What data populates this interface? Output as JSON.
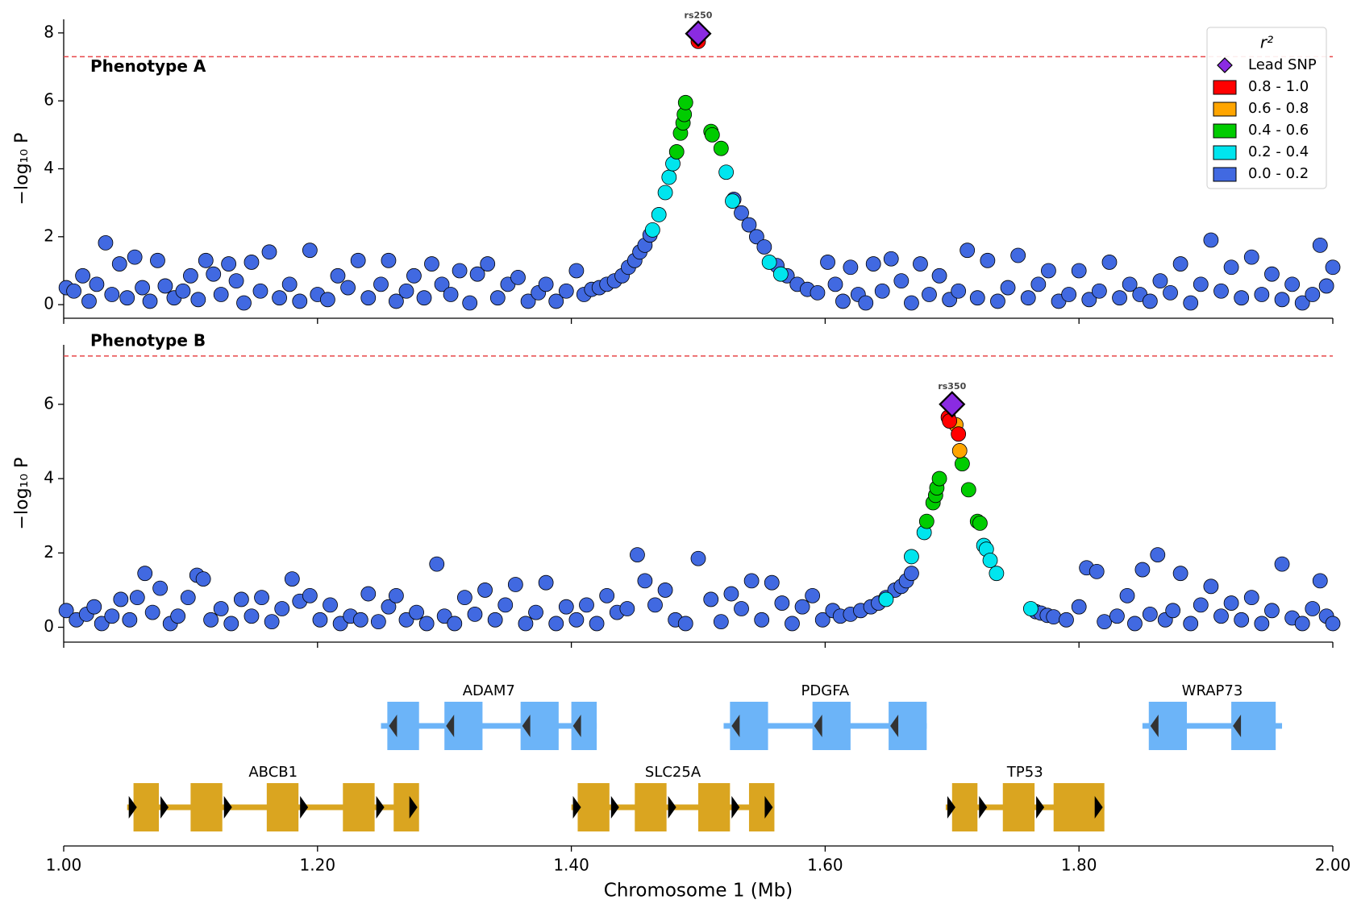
{
  "chart_data": [
    {
      "type": "scatter",
      "title": "Phenotype A",
      "ylabel": "−log₁₀ P",
      "xlim": [
        1.0,
        2.0
      ],
      "xticks": [
        1.0,
        1.2,
        1.4,
        1.6,
        1.8,
        2.0
      ],
      "ylim": [
        -0.4,
        8.4
      ],
      "yticks": [
        0,
        2,
        4,
        6,
        8
      ],
      "threshold": 7.3,
      "threshold_color": "#e8474a",
      "legend": {
        "title": "r²",
        "lead_label": "Lead SNP",
        "position": "upper right"
      },
      "lead": {
        "label": "rs250",
        "x": 1.5,
        "y": 7.98,
        "color": "#8a2be2"
      },
      "series": [
        {
          "name": "0.8 - 1.0",
          "color": "#ff0000",
          "x": [
            1.5
          ],
          "values": [
            7.75
          ]
        },
        {
          "name": "0.6 - 0.8",
          "color": "#ffa500",
          "x": [],
          "values": []
        },
        {
          "name": "0.4 - 0.6",
          "color": "#00cc00",
          "x": [
            1.483,
            1.486,
            1.488,
            1.489,
            1.49,
            1.51,
            1.511,
            1.518
          ],
          "values": [
            4.5,
            5.05,
            5.35,
            5.6,
            5.95,
            5.1,
            5.0,
            4.6
          ]
        },
        {
          "name": "0.2 - 0.4",
          "color": "#00e5ee",
          "x": [
            1.464,
            1.469,
            1.474,
            1.477,
            1.48,
            1.522,
            1.527,
            1.556,
            1.565
          ],
          "values": [
            2.2,
            2.65,
            3.3,
            3.75,
            4.15,
            3.9,
            3.05,
            1.25,
            0.9
          ]
        },
        {
          "name": "0.0 - 0.2",
          "color": "#4169e1",
          "x": [
            1.002,
            1.008,
            1.015,
            1.02,
            1.026,
            1.033,
            1.038,
            1.044,
            1.05,
            1.056,
            1.062,
            1.068,
            1.074,
            1.08,
            1.087,
            1.094,
            1.1,
            1.106,
            1.112,
            1.118,
            1.124,
            1.13,
            1.136,
            1.142,
            1.148,
            1.155,
            1.162,
            1.17,
            1.178,
            1.186,
            1.194,
            1.2,
            1.208,
            1.216,
            1.224,
            1.232,
            1.24,
            1.25,
            1.256,
            1.262,
            1.27,
            1.276,
            1.284,
            1.29,
            1.298,
            1.305,
            1.312,
            1.32,
            1.326,
            1.334,
            1.342,
            1.35,
            1.358,
            1.366,
            1.374,
            1.38,
            1.388,
            1.396,
            1.404,
            1.41,
            1.416,
            1.422,
            1.428,
            1.434,
            1.44,
            1.445,
            1.45,
            1.454,
            1.458,
            1.462,
            1.528,
            1.534,
            1.54,
            1.546,
            1.552,
            1.562,
            1.57,
            1.578,
            1.586,
            1.594,
            1.602,
            1.608,
            1.614,
            1.62,
            1.626,
            1.632,
            1.638,
            1.645,
            1.652,
            1.66,
            1.668,
            1.675,
            1.682,
            1.69,
            1.698,
            1.705,
            1.712,
            1.72,
            1.728,
            1.736,
            1.744,
            1.752,
            1.76,
            1.768,
            1.776,
            1.784,
            1.792,
            1.8,
            1.808,
            1.816,
            1.824,
            1.832,
            1.84,
            1.848,
            1.856,
            1.864,
            1.872,
            1.88,
            1.888,
            1.896,
            1.904,
            1.912,
            1.92,
            1.928,
            1.936,
            1.944,
            1.952,
            1.96,
            1.968,
            1.976,
            1.984,
            1.99,
            1.995,
            2.0
          ],
          "values": [
            0.5,
            0.4,
            0.85,
            0.1,
            0.6,
            1.82,
            0.3,
            1.2,
            0.2,
            1.4,
            0.5,
            0.1,
            1.3,
            0.55,
            0.2,
            0.4,
            0.85,
            0.15,
            1.3,
            0.9,
            0.3,
            1.2,
            0.7,
            0.05,
            1.25,
            0.4,
            1.55,
            0.2,
            0.6,
            0.1,
            1.6,
            0.3,
            0.15,
            0.85,
            0.5,
            1.3,
            0.2,
            0.6,
            1.3,
            0.1,
            0.4,
            0.85,
            0.2,
            1.2,
            0.6,
            0.3,
            1.0,
            0.05,
            0.9,
            1.2,
            0.2,
            0.6,
            0.8,
            0.1,
            0.35,
            0.6,
            0.1,
            0.4,
            1.0,
            0.3,
            0.45,
            0.5,
            0.6,
            0.7,
            0.85,
            1.1,
            1.3,
            1.55,
            1.75,
            2.05,
            3.1,
            2.7,
            2.35,
            2.0,
            1.7,
            1.15,
            0.85,
            0.6,
            0.45,
            0.35,
            1.25,
            0.6,
            0.1,
            1.1,
            0.3,
            0.05,
            1.2,
            0.4,
            1.35,
            0.7,
            0.05,
            1.2,
            0.3,
            0.85,
            0.15,
            0.4,
            1.6,
            0.2,
            1.3,
            0.1,
            0.5,
            1.45,
            0.2,
            0.6,
            1.0,
            0.1,
            0.3,
            1.0,
            0.15,
            0.4,
            1.25,
            0.2,
            0.6,
            0.3,
            0.1,
            0.7,
            0.35,
            1.2,
            0.05,
            0.6,
            1.9,
            0.4,
            1.1,
            0.2,
            1.4,
            0.3,
            0.9,
            0.15,
            0.6,
            0.05,
            0.3,
            1.75,
            0.55,
            1.1
          ]
        }
      ]
    },
    {
      "type": "scatter",
      "title": "Phenotype B",
      "ylabel": "−log₁₀ P",
      "xlim": [
        1.0,
        2.0
      ],
      "xticks": [
        1.0,
        1.2,
        1.4,
        1.6,
        1.8,
        2.0
      ],
      "ylim": [
        -0.4,
        7.6
      ],
      "yticks": [
        0,
        2,
        4,
        6
      ],
      "threshold": 7.3,
      "threshold_color": "#e8474a",
      "lead": {
        "label": "rs350",
        "x": 1.7,
        "y": 6.0,
        "color": "#8a2be2"
      },
      "series": [
        {
          "color": "#ff0000",
          "x": [
            1.697,
            1.698,
            1.705
          ],
          "values": [
            5.65,
            5.55,
            5.2
          ]
        },
        {
          "color": "#ffa500",
          "x": [
            1.703,
            1.706
          ],
          "values": [
            5.45,
            4.75
          ]
        },
        {
          "color": "#00cc00",
          "x": [
            1.68,
            1.685,
            1.687,
            1.688,
            1.69,
            1.708,
            1.713,
            1.72,
            1.722
          ],
          "values": [
            2.85,
            3.35,
            3.55,
            3.75,
            4.0,
            4.4,
            3.7,
            2.85,
            2.8
          ]
        },
        {
          "color": "#00e5ee",
          "x": [
            1.648,
            1.668,
            1.678,
            1.725,
            1.727,
            1.73,
            1.735,
            1.762
          ],
          "values": [
            0.75,
            1.9,
            2.55,
            2.2,
            2.1,
            1.8,
            1.45,
            0.5
          ]
        },
        {
          "color": "#4169e1",
          "x": [
            1.002,
            1.01,
            1.018,
            1.024,
            1.03,
            1.038,
            1.045,
            1.052,
            1.058,
            1.064,
            1.07,
            1.076,
            1.084,
            1.09,
            1.098,
            1.105,
            1.11,
            1.116,
            1.124,
            1.132,
            1.14,
            1.148,
            1.156,
            1.164,
            1.172,
            1.18,
            1.186,
            1.194,
            1.202,
            1.21,
            1.218,
            1.226,
            1.234,
            1.24,
            1.248,
            1.256,
            1.262,
            1.27,
            1.278,
            1.286,
            1.294,
            1.3,
            1.308,
            1.316,
            1.324,
            1.332,
            1.34,
            1.348,
            1.356,
            1.364,
            1.372,
            1.38,
            1.388,
            1.396,
            1.404,
            1.412,
            1.42,
            1.428,
            1.436,
            1.444,
            1.452,
            1.458,
            1.466,
            1.474,
            1.482,
            1.49,
            1.5,
            1.51,
            1.518,
            1.526,
            1.534,
            1.542,
            1.55,
            1.558,
            1.566,
            1.574,
            1.582,
            1.59,
            1.598,
            1.606,
            1.612,
            1.62,
            1.628,
            1.636,
            1.642,
            1.648,
            1.655,
            1.66,
            1.664,
            1.668,
            1.766,
            1.77,
            1.775,
            1.78,
            1.79,
            1.8,
            1.806,
            1.814,
            1.82,
            1.83,
            1.838,
            1.844,
            1.85,
            1.856,
            1.862,
            1.868,
            1.874,
            1.88,
            1.888,
            1.896,
            1.904,
            1.912,
            1.92,
            1.928,
            1.936,
            1.944,
            1.952,
            1.96,
            1.968,
            1.976,
            1.984,
            1.99,
            1.995,
            2.0
          ],
          "values": [
            0.45,
            0.2,
            0.35,
            0.55,
            0.1,
            0.3,
            0.75,
            0.2,
            0.8,
            1.45,
            0.4,
            1.05,
            0.1,
            0.3,
            0.8,
            1.4,
            1.3,
            0.2,
            0.5,
            0.1,
            0.75,
            0.3,
            0.8,
            0.15,
            0.5,
            1.3,
            0.7,
            0.85,
            0.2,
            0.6,
            0.1,
            0.3,
            0.2,
            0.9,
            0.15,
            0.55,
            0.85,
            0.2,
            0.4,
            0.1,
            1.7,
            0.3,
            0.1,
            0.8,
            0.35,
            1.0,
            0.2,
            0.6,
            1.15,
            0.1,
            0.4,
            1.2,
            0.1,
            0.55,
            0.2,
            0.6,
            0.1,
            0.85,
            0.4,
            0.5,
            1.95,
            1.25,
            0.6,
            1.0,
            0.2,
            0.1,
            1.85,
            0.75,
            0.15,
            0.9,
            0.5,
            1.25,
            0.2,
            1.2,
            0.65,
            0.1,
            0.55,
            0.85,
            0.2,
            0.45,
            0.3,
            0.35,
            0.45,
            0.55,
            0.65,
            0.8,
            1.0,
            1.1,
            1.25,
            1.45,
            0.42,
            0.38,
            0.32,
            0.28,
            0.2,
            0.55,
            1.6,
            1.5,
            0.15,
            0.3,
            0.85,
            0.1,
            1.55,
            0.35,
            1.95,
            0.2,
            0.45,
            1.45,
            0.1,
            0.6,
            1.1,
            0.3,
            0.65,
            0.2,
            0.8,
            0.1,
            0.45,
            1.7,
            0.25,
            0.1,
            0.5,
            1.25,
            0.3,
            0.1
          ]
        }
      ]
    },
    {
      "type": "genes",
      "xlabel": "Chromosome 1 (Mb)",
      "xlim": [
        1.0,
        2.0
      ],
      "xticks": [
        {
          "value": 1.0,
          "label": "1.00"
        },
        {
          "value": 1.2,
          "label": "1.20"
        },
        {
          "value": 1.4,
          "label": "1.40"
        },
        {
          "value": 1.6,
          "label": "1.60"
        },
        {
          "value": 1.8,
          "label": "1.80"
        },
        {
          "value": 2.0,
          "label": "2.00"
        }
      ],
      "genes": [
        {
          "name": "ADAM7",
          "start": 1.25,
          "end": 1.42,
          "strand": "-",
          "row": 0,
          "color": "#6cb4f8",
          "exons": [
            [
              1.255,
              1.28
            ],
            [
              1.3,
              1.33
            ],
            [
              1.36,
              1.39
            ],
            [
              1.4,
              1.42
            ]
          ]
        },
        {
          "name": "PDGFA",
          "start": 1.52,
          "end": 1.68,
          "strand": "-",
          "row": 0,
          "color": "#6cb4f8",
          "exons": [
            [
              1.525,
              1.555
            ],
            [
              1.59,
              1.62
            ],
            [
              1.65,
              1.68
            ]
          ]
        },
        {
          "name": "WRAP73",
          "start": 1.85,
          "end": 1.96,
          "strand": "-",
          "row": 0,
          "color": "#6cb4f8",
          "exons": [
            [
              1.855,
              1.885
            ],
            [
              1.92,
              1.955
            ]
          ]
        },
        {
          "name": "ABCB1",
          "start": 1.05,
          "end": 1.28,
          "strand": "+",
          "row": 1,
          "color": "#daa520",
          "exons": [
            [
              1.055,
              1.075
            ],
            [
              1.1,
              1.125
            ],
            [
              1.16,
              1.185
            ],
            [
              1.22,
              1.245
            ],
            [
              1.26,
              1.28
            ]
          ]
        },
        {
          "name": "SLC25A",
          "start": 1.4,
          "end": 1.56,
          "strand": "+",
          "row": 1,
          "color": "#daa520",
          "exons": [
            [
              1.405,
              1.43
            ],
            [
              1.45,
              1.475
            ],
            [
              1.5,
              1.525
            ],
            [
              1.54,
              1.56
            ]
          ]
        },
        {
          "name": "TP53",
          "start": 1.695,
          "end": 1.82,
          "strand": "+",
          "row": 1,
          "color": "#daa520",
          "exons": [
            [
              1.7,
              1.72
            ],
            [
              1.74,
              1.765
            ],
            [
              1.78,
              1.82
            ]
          ]
        }
      ]
    }
  ]
}
